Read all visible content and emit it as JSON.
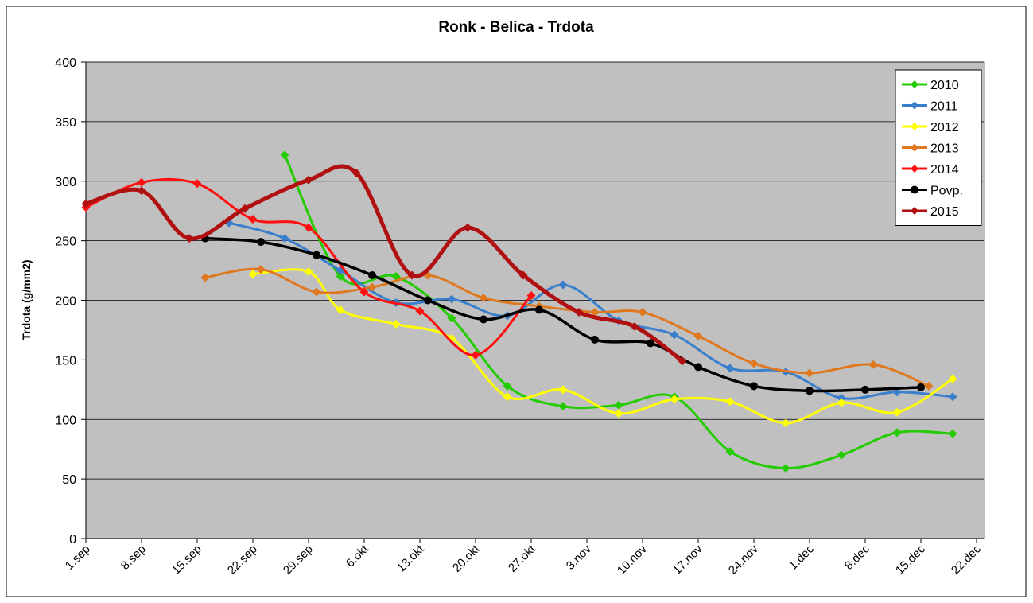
{
  "chart_data": {
    "type": "line",
    "title": "Ronk - Belica - Trdota",
    "y_label": "Trdota (g/mm2)",
    "xlim": [
      0,
      113
    ],
    "xticks": [
      {
        "value": 0,
        "label": "1.sep"
      },
      {
        "value": 7,
        "label": "8.sep"
      },
      {
        "value": 14,
        "label": "15.sep"
      },
      {
        "value": 21,
        "label": "22.sep"
      },
      {
        "value": 28,
        "label": "29.sep"
      },
      {
        "value": 35,
        "label": "6.okt"
      },
      {
        "value": 42,
        "label": "13.okt"
      },
      {
        "value": 49,
        "label": "20.okt"
      },
      {
        "value": 56,
        "label": "27.okt"
      },
      {
        "value": 63,
        "label": "3.nov"
      },
      {
        "value": 70,
        "label": "10.nov"
      },
      {
        "value": 77,
        "label": "17.nov"
      },
      {
        "value": 84,
        "label": "24.nov"
      },
      {
        "value": 91,
        "label": "1.dec"
      },
      {
        "value": 98,
        "label": "8.dec"
      },
      {
        "value": 105,
        "label": "15.dec"
      },
      {
        "value": 112,
        "label": "22.dec"
      }
    ],
    "ylim": [
      0,
      400
    ],
    "yticks": [
      0,
      50,
      100,
      150,
      200,
      250,
      300,
      350,
      400
    ],
    "grid": true,
    "legend": "top-right",
    "series": [
      {
        "name": "2010",
        "color": "#22cc00",
        "marker": "diamond",
        "line_width": 3,
        "x": [
          25,
          32,
          39,
          46,
          53,
          60,
          67,
          74,
          81,
          88,
          95,
          102,
          109
        ],
        "values": [
          322,
          220,
          220,
          185,
          128,
          111,
          112,
          119,
          73,
          59,
          70,
          89,
          88
        ]
      },
      {
        "name": "2011",
        "color": "#3a7fcc",
        "marker": "diamond",
        "line_width": 3,
        "x": [
          18,
          25,
          32,
          39,
          46,
          53,
          60,
          67,
          74,
          81,
          88,
          95,
          102,
          109
        ],
        "values": [
          265,
          252,
          225,
          198,
          201,
          187,
          213,
          183,
          171,
          143,
          140,
          118,
          123,
          119
        ]
      },
      {
        "name": "2012",
        "color": "#ffff00",
        "marker": "diamond",
        "line_width": 3,
        "x": [
          21,
          28,
          32,
          39,
          46,
          53,
          60,
          67,
          74,
          81,
          88,
          95,
          102,
          109
        ],
        "values": [
          222,
          224,
          192,
          180,
          168,
          119,
          125,
          105,
          117,
          115,
          97,
          114,
          106,
          134
        ]
      },
      {
        "name": "2013",
        "color": "#e07820",
        "marker": "diamond",
        "line_width": 3,
        "x": [
          15,
          22,
          29,
          36,
          43,
          50,
          57,
          64,
          70,
          77,
          84,
          91,
          99,
          106
        ],
        "values": [
          219,
          226,
          207,
          211,
          221,
          202,
          195,
          190,
          190,
          170,
          147,
          139,
          146,
          128
        ]
      },
      {
        "name": "2014",
        "color": "#ff1010",
        "marker": "diamond",
        "line_width": 3,
        "x": [
          0,
          7,
          14,
          21,
          28,
          35,
          42,
          49,
          56
        ],
        "values": [
          278,
          299,
          298,
          268,
          261,
          207,
          191,
          154,
          204
        ]
      },
      {
        "name": "Povp.",
        "color": "#000000",
        "marker": "circle",
        "line_width": 3.5,
        "x": [
          15,
          22,
          29,
          36,
          43,
          50,
          57,
          64,
          71,
          77,
          84,
          91,
          98,
          105
        ],
        "values": [
          252,
          249,
          238,
          221,
          200,
          184,
          192,
          167,
          164,
          144,
          128,
          124,
          125,
          127
        ]
      },
      {
        "name": "2015",
        "color": "#b01010",
        "marker": "diamond",
        "line_width": 5,
        "x": [
          0,
          7,
          13,
          20,
          28,
          34,
          41,
          48,
          55,
          62,
          69,
          75
        ],
        "values": [
          281,
          292,
          252,
          277,
          301,
          307,
          221,
          261,
          221,
          190,
          178,
          149
        ]
      }
    ]
  }
}
